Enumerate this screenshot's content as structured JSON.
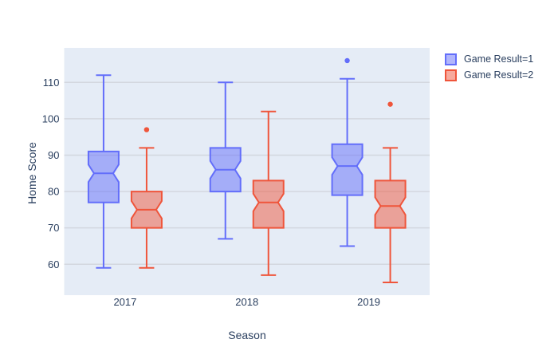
{
  "chart_data": {
    "type": "box",
    "orientation": "vertical",
    "notched": true,
    "xlabel": "Season",
    "ylabel": "Home Score",
    "categories": [
      "2017",
      "2018",
      "2019"
    ],
    "yticks": [
      60,
      70,
      80,
      90,
      100,
      110
    ],
    "ylim": [
      51.5,
      119.5
    ],
    "grid": "horizontal-only",
    "legend_position": "outside-top-right",
    "series": [
      {
        "name": "Game Result=1",
        "color": "#636efa",
        "boxes": [
          {
            "category": "2017",
            "min": 59,
            "q1": 77,
            "median": 85,
            "q3": 91,
            "max": 112,
            "outliers": []
          },
          {
            "category": "2018",
            "min": 67,
            "q1": 80,
            "median": 86,
            "q3": 92,
            "max": 110,
            "outliers": []
          },
          {
            "category": "2019",
            "min": 65,
            "q1": 79,
            "median": 87,
            "q3": 93,
            "max": 111,
            "outliers": [
              116
            ]
          }
        ]
      },
      {
        "name": "Game Result=2",
        "color": "#ef553b",
        "boxes": [
          {
            "category": "2017",
            "min": 59,
            "q1": 70,
            "median": 75,
            "q3": 80,
            "max": 92,
            "outliers": [
              97
            ]
          },
          {
            "category": "2018",
            "min": 57,
            "q1": 70,
            "median": 77,
            "q3": 83,
            "max": 102,
            "outliers": []
          },
          {
            "category": "2019",
            "min": 55,
            "q1": 70,
            "median": 76,
            "q3": 83,
            "max": 92,
            "outliers": [
              104
            ]
          }
        ]
      }
    ],
    "colors": {
      "plot_bg": "#e5ecf6",
      "page_bg": "#ffffff",
      "grid": "#d3d7df",
      "text": "#2a3f5f"
    }
  }
}
